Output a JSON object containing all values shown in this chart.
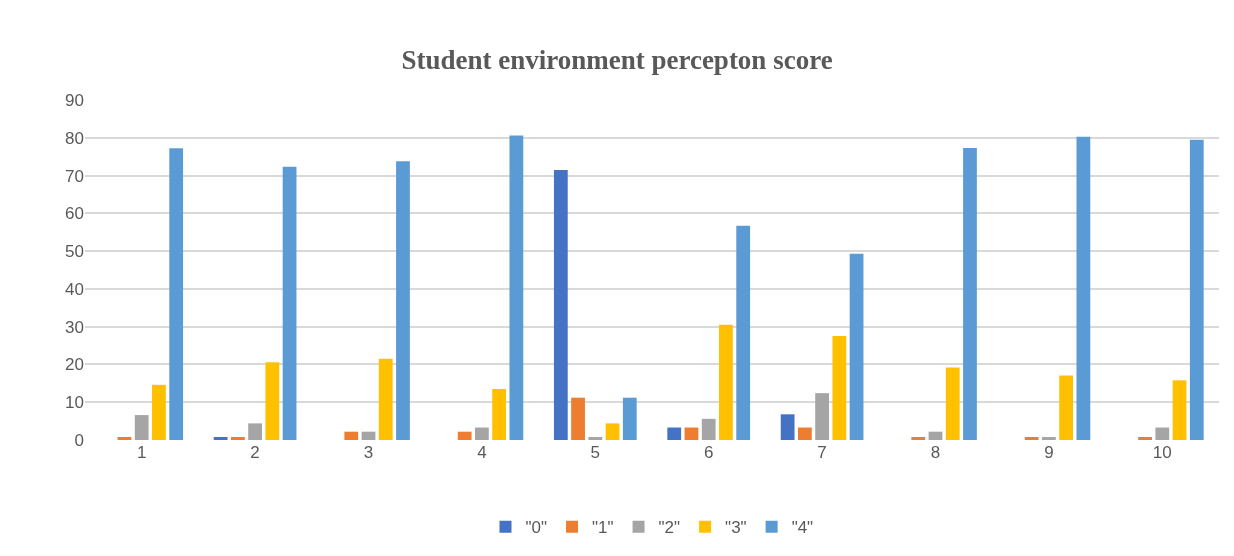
{
  "chart_data": {
    "type": "bar",
    "title": "Student environment percepton score",
    "categories": [
      "1",
      "2",
      "3",
      "4",
      "5",
      "6",
      "7",
      "8",
      "9",
      "10"
    ],
    "series": [
      {
        "name": "\"0\"",
        "color": "#4472c4",
        "values": [
          0,
          0.8,
          0,
          0,
          71.5,
          3.3,
          6.8,
          0,
          0,
          0
        ]
      },
      {
        "name": "\"1\"",
        "color": "#ed7d31",
        "values": [
          0.8,
          0.8,
          2.2,
          2.2,
          11.2,
          3.3,
          3.3,
          0.8,
          0.8,
          0.8
        ]
      },
      {
        "name": "\"2\"",
        "color": "#a5a5a5",
        "values": [
          6.6,
          4.4,
          2.2,
          3.3,
          0.8,
          5.6,
          12.4,
          2.2,
          0.8,
          3.3
        ]
      },
      {
        "name": "\"3\"",
        "color": "#ffc000",
        "values": [
          14.6,
          20.6,
          21.5,
          13.5,
          4.4,
          30.5,
          27.5,
          19.2,
          17.1,
          15.8
        ]
      },
      {
        "name": "\"4\"",
        "color": "#5b9bd5",
        "values": [
          77.2,
          72.3,
          73.8,
          80.6,
          11.2,
          56.7,
          49.3,
          77.3,
          80.3,
          79.5
        ]
      }
    ],
    "ylim": [
      0,
      90
    ],
    "yticks": [
      0,
      10,
      20,
      30,
      40,
      50,
      60,
      70,
      80,
      90
    ],
    "grid": "y",
    "legend": "bottom"
  }
}
